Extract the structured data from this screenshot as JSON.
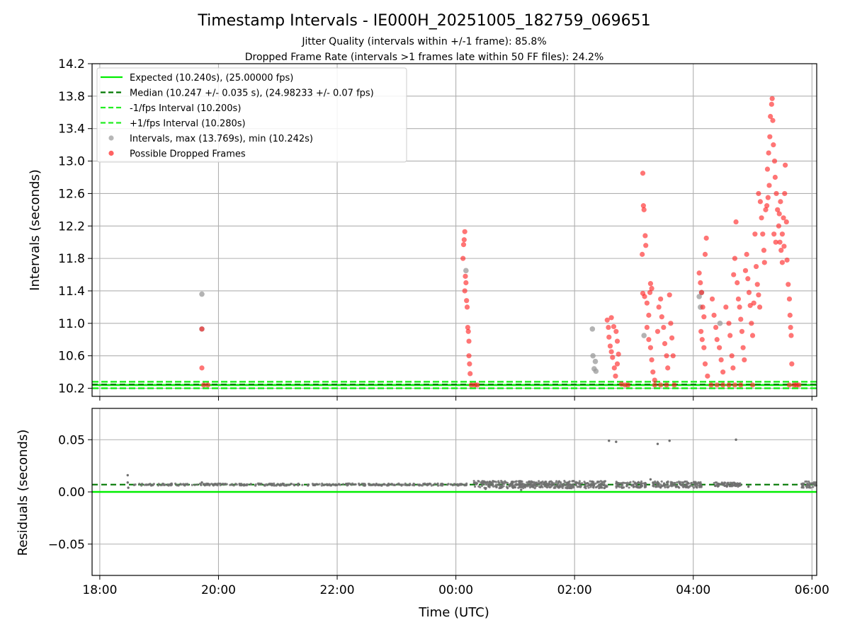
{
  "figure": {
    "title": "Timestamp Intervals - IE000H_20251005_182759_069651",
    "subtitle_1": "Jitter Quality (intervals within +/-1 frame): 85.8%",
    "subtitle_2": "Dropped Frame Rate (intervals >1 frames late within 50 FF files): 24.2%"
  },
  "colors": {
    "expected": "#00ee00",
    "median": "#007700",
    "fps_band": "#22ee22",
    "intervals": "#999999",
    "dropped": "#ff2020",
    "residual_points": "#707070",
    "grid": "#b0b0b0"
  },
  "chart_data": [
    {
      "type": "scatter",
      "panel": "intervals",
      "title": "",
      "xlabel": "",
      "ylabel": "Intervals (seconds)",
      "x_unit": "hours (UTC), values above 24 are after midnight",
      "xlim": [
        17.87,
        30.08
      ],
      "ylim": [
        10.1,
        14.2
      ],
      "grid": true,
      "legend_position": "top-left",
      "y_ticks": [
        "10.2",
        "10.6",
        "11.0",
        "11.4",
        "11.8",
        "12.2",
        "12.6",
        "13.0",
        "13.4",
        "13.8",
        "14.2"
      ],
      "y_tick_values": [
        10.2,
        10.6,
        11.0,
        11.4,
        11.8,
        12.2,
        12.6,
        13.0,
        13.4,
        13.8,
        14.2
      ],
      "reference_lines": [
        {
          "name": "Expected (10.240s), (25.00000 fps)",
          "y": 10.24,
          "style": "solid",
          "color_key": "expected"
        },
        {
          "name": "Median (10.247 +/- 0.035 s), (24.98233 +/- 0.07 fps)",
          "y": 10.247,
          "style": "dashed",
          "color_key": "median"
        },
        {
          "name": "-1/fps Interval (10.200s)",
          "y": 10.2,
          "style": "dashed",
          "color_key": "fps_band"
        },
        {
          "name": "+1/fps Interval (10.280s)",
          "y": 10.28,
          "style": "dashed",
          "color_key": "fps_band"
        }
      ],
      "series": [
        {
          "name": "Intervals, max (13.769s), min (10.242s)",
          "kind": "intervals",
          "color_key": "intervals",
          "points": [
            [
              19.72,
              11.36
            ],
            [
              19.72,
              10.93
            ],
            [
              24.17,
              11.65
            ],
            [
              26.3,
              10.93
            ],
            [
              26.31,
              10.6
            ],
            [
              26.35,
              10.53
            ],
            [
              26.33,
              10.44
            ],
            [
              26.36,
              10.41
            ],
            [
              27.17,
              10.85
            ],
            [
              28.1,
              11.33
            ],
            [
              28.14,
              11.38
            ],
            [
              28.12,
              11.2
            ],
            [
              28.45,
              11.0
            ]
          ]
        },
        {
          "name": "Possible Dropped Frames",
          "kind": "dropped",
          "color_key": "dropped",
          "points": [
            [
              19.72,
              10.93
            ],
            [
              19.72,
              10.45
            ],
            [
              19.75,
              10.24
            ],
            [
              19.82,
              10.24
            ],
            [
              24.12,
              11.8
            ],
            [
              24.13,
              11.97
            ],
            [
              24.14,
              12.03
            ],
            [
              24.15,
              12.13
            ],
            [
              24.15,
              11.4
            ],
            [
              24.16,
              11.58
            ],
            [
              24.17,
              11.5
            ],
            [
              24.18,
              11.28
            ],
            [
              24.19,
              11.2
            ],
            [
              24.2,
              10.95
            ],
            [
              24.21,
              10.9
            ],
            [
              24.22,
              10.78
            ],
            [
              24.22,
              10.6
            ],
            [
              24.23,
              10.5
            ],
            [
              24.24,
              10.38
            ],
            [
              24.26,
              10.24
            ],
            [
              24.32,
              10.24
            ],
            [
              24.36,
              10.24
            ],
            [
              26.55,
              11.04
            ],
            [
              26.57,
              10.95
            ],
            [
              26.58,
              10.83
            ],
            [
              26.6,
              10.72
            ],
            [
              26.62,
              10.65
            ],
            [
              26.64,
              10.58
            ],
            [
              26.67,
              10.45
            ],
            [
              26.69,
              10.35
            ],
            [
              26.72,
              10.5
            ],
            [
              26.74,
              10.62
            ],
            [
              26.62,
              11.07
            ],
            [
              26.66,
              10.96
            ],
            [
              26.7,
              10.9
            ],
            [
              26.72,
              10.78
            ],
            [
              26.79,
              10.25
            ],
            [
              26.85,
              10.24
            ],
            [
              26.9,
              10.24
            ],
            [
              27.15,
              12.85
            ],
            [
              27.16,
              12.45
            ],
            [
              27.17,
              12.4
            ],
            [
              27.19,
              12.08
            ],
            [
              27.14,
              11.85
            ],
            [
              27.2,
              11.96
            ],
            [
              27.15,
              11.37
            ],
            [
              27.18,
              11.33
            ],
            [
              27.22,
              11.25
            ],
            [
              27.25,
              11.1
            ],
            [
              27.27,
              11.38
            ],
            [
              27.28,
              11.49
            ],
            [
              27.3,
              11.43
            ],
            [
              27.22,
              10.95
            ],
            [
              27.25,
              10.8
            ],
            [
              27.28,
              10.7
            ],
            [
              27.3,
              10.55
            ],
            [
              27.32,
              10.4
            ],
            [
              27.35,
              10.3
            ],
            [
              27.4,
              10.9
            ],
            [
              27.42,
              11.2
            ],
            [
              27.45,
              11.3
            ],
            [
              27.47,
              11.08
            ],
            [
              27.5,
              10.95
            ],
            [
              27.52,
              10.75
            ],
            [
              27.55,
              10.6
            ],
            [
              27.57,
              10.45
            ],
            [
              27.6,
              11.35
            ],
            [
              27.62,
              11.0
            ],
            [
              27.64,
              10.82
            ],
            [
              27.66,
              10.6
            ],
            [
              27.68,
              10.24
            ],
            [
              27.55,
              10.24
            ],
            [
              27.45,
              10.24
            ],
            [
              27.35,
              10.24
            ],
            [
              28.1,
              11.62
            ],
            [
              28.12,
              11.5
            ],
            [
              28.14,
              11.38
            ],
            [
              28.16,
              11.2
            ],
            [
              28.18,
              11.08
            ],
            [
              28.2,
              11.85
            ],
            [
              28.22,
              12.05
            ],
            [
              28.13,
              10.9
            ],
            [
              28.15,
              10.8
            ],
            [
              28.18,
              10.7
            ],
            [
              28.2,
              10.5
            ],
            [
              28.24,
              10.35
            ],
            [
              28.3,
              10.24
            ],
            [
              28.32,
              11.3
            ],
            [
              28.35,
              11.1
            ],
            [
              28.38,
              10.95
            ],
            [
              28.4,
              10.8
            ],
            [
              28.44,
              10.7
            ],
            [
              28.47,
              10.55
            ],
            [
              28.5,
              10.4
            ],
            [
              28.55,
              11.2
            ],
            [
              28.6,
              11.0
            ],
            [
              28.62,
              10.85
            ],
            [
              28.65,
              10.6
            ],
            [
              28.67,
              10.45
            ],
            [
              28.68,
              11.6
            ],
            [
              28.7,
              11.8
            ],
            [
              28.72,
              12.25
            ],
            [
              28.74,
              11.5
            ],
            [
              28.76,
              11.3
            ],
            [
              28.78,
              11.2
            ],
            [
              28.8,
              11.05
            ],
            [
              28.82,
              10.9
            ],
            [
              28.84,
              10.7
            ],
            [
              28.86,
              10.55
            ],
            [
              28.88,
              11.65
            ],
            [
              28.9,
              11.85
            ],
            [
              28.92,
              11.55
            ],
            [
              28.94,
              11.38
            ],
            [
              28.96,
              11.22
            ],
            [
              28.98,
              11.0
            ],
            [
              29.0,
              10.85
            ],
            [
              29.02,
              11.25
            ],
            [
              29.04,
              12.1
            ],
            [
              29.06,
              11.7
            ],
            [
              29.08,
              11.48
            ],
            [
              29.1,
              11.35
            ],
            [
              29.12,
              11.2
            ],
            [
              28.4,
              10.24
            ],
            [
              28.5,
              10.24
            ],
            [
              28.6,
              10.24
            ],
            [
              28.7,
              10.24
            ],
            [
              28.8,
              10.24
            ],
            [
              29.0,
              10.24
            ],
            [
              29.1,
              12.6
            ],
            [
              29.13,
              12.5
            ],
            [
              29.15,
              12.3
            ],
            [
              29.17,
              12.1
            ],
            [
              29.19,
              11.9
            ],
            [
              29.2,
              11.75
            ],
            [
              29.22,
              12.4
            ],
            [
              29.25,
              12.9
            ],
            [
              29.27,
              13.1
            ],
            [
              29.29,
              13.3
            ],
            [
              29.3,
              13.55
            ],
            [
              29.32,
              13.7
            ],
            [
              29.33,
              13.77
            ],
            [
              29.34,
              13.5
            ],
            [
              29.35,
              13.2
            ],
            [
              29.37,
              13.0
            ],
            [
              29.38,
              12.8
            ],
            [
              29.4,
              12.6
            ],
            [
              29.42,
              12.4
            ],
            [
              29.44,
              12.2
            ],
            [
              29.46,
              12.0
            ],
            [
              29.48,
              11.9
            ],
            [
              29.5,
              11.75
            ],
            [
              29.52,
              12.3
            ],
            [
              29.54,
              12.6
            ],
            [
              29.55,
              12.95
            ],
            [
              29.57,
              12.25
            ],
            [
              29.58,
              11.78
            ],
            [
              29.6,
              11.48
            ],
            [
              29.62,
              11.3
            ],
            [
              29.63,
              11.1
            ],
            [
              29.64,
              10.95
            ],
            [
              29.65,
              10.85
            ],
            [
              29.66,
              10.5
            ],
            [
              29.28,
              12.7
            ],
            [
              29.26,
              12.55
            ],
            [
              29.24,
              12.45
            ],
            [
              29.36,
              12.1
            ],
            [
              29.39,
              12.0
            ],
            [
              29.45,
              12.35
            ],
            [
              29.47,
              12.5
            ],
            [
              29.5,
              12.1
            ],
            [
              29.53,
              11.95
            ],
            [
              29.62,
              10.24
            ],
            [
              29.7,
              10.24
            ],
            [
              29.74,
              10.24
            ],
            [
              29.78,
              10.24
            ]
          ]
        }
      ],
      "legend": [
        {
          "label": "Expected (10.240s), (25.00000 fps)",
          "marker": "solid-line",
          "color_key": "expected"
        },
        {
          "label": "Median (10.247 +/- 0.035 s), (24.98233 +/- 0.07 fps)",
          "marker": "dashed-line",
          "color_key": "median"
        },
        {
          "label": "-1/fps Interval (10.200s)",
          "marker": "dashed-line",
          "color_key": "fps_band"
        },
        {
          "label": "+1/fps Interval (10.280s)",
          "marker": "dashed-line",
          "color_key": "fps_band"
        },
        {
          "label": "Intervals, max (13.769s), min (10.242s)",
          "marker": "dot",
          "color_key": "intervals"
        },
        {
          "label": "Possible Dropped Frames",
          "marker": "dot",
          "color_key": "dropped"
        }
      ]
    },
    {
      "type": "scatter",
      "panel": "residuals",
      "title": "",
      "xlabel": "Time (UTC)",
      "ylabel": "Residuals (seconds)",
      "xlim": [
        17.87,
        30.08
      ],
      "ylim": [
        -0.08,
        0.08
      ],
      "grid": true,
      "y_ticks": [
        "−0.05",
        "0.00",
        "0.05"
      ],
      "y_tick_values": [
        -0.05,
        0.0,
        0.05
      ],
      "x_ticks": [
        "18:00",
        "20:00",
        "22:00",
        "00:00",
        "02:00",
        "04:00",
        "06:00"
      ],
      "x_tick_values": [
        18,
        20,
        22,
        24,
        26,
        28,
        30
      ],
      "reference_lines": [
        {
          "name": "Expected",
          "y": 0.0,
          "style": "solid",
          "color_key": "expected"
        },
        {
          "name": "Median",
          "y": 0.007,
          "style": "dashed",
          "color_key": "median"
        }
      ],
      "outliers": [
        [
          18.47,
          0.016
        ],
        [
          18.47,
          0.009
        ],
        [
          18.48,
          0.004
        ],
        [
          19.72,
          0.009
        ],
        [
          26.58,
          0.049
        ],
        [
          26.7,
          0.048
        ],
        [
          27.4,
          0.046
        ],
        [
          27.6,
          0.049
        ],
        [
          28.72,
          0.05
        ],
        [
          28.93,
          0.005
        ],
        [
          25.1,
          0.002
        ],
        [
          24.5,
          0.003
        ],
        [
          27.28,
          0.012
        ],
        [
          26.8,
          0.004
        ]
      ],
      "dense_segments": [
        {
          "x_start": 18.47,
          "x_end": 24.2,
          "y_center": 0.007,
          "spread": 0.001
        },
        {
          "x_start": 24.3,
          "x_end": 26.55,
          "y_center": 0.007,
          "spread": 0.0035
        },
        {
          "x_start": 26.7,
          "x_end": 27.2,
          "y_center": 0.007,
          "spread": 0.003
        },
        {
          "x_start": 27.3,
          "x_end": 28.15,
          "y_center": 0.007,
          "spread": 0.003
        },
        {
          "x_start": 28.35,
          "x_end": 28.8,
          "y_center": 0.007,
          "spread": 0.002
        },
        {
          "x_start": 29.82,
          "x_end": 30.08,
          "y_center": 0.007,
          "spread": 0.003
        }
      ]
    }
  ]
}
